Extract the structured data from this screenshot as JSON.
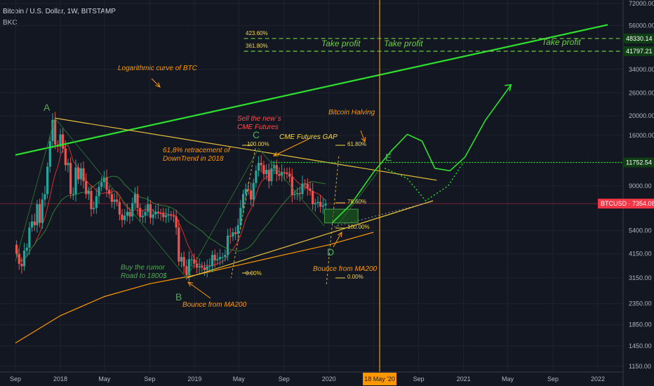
{
  "header": {
    "title": "Bitcoin / U.S. Dollar, 1W, BITSTAMP",
    "indicator": "BKC"
  },
  "colors": {
    "background": "#131722",
    "candle_up": "#26a69a",
    "candle_down": "#ef5350",
    "trend_green": "#2ee02e",
    "annotation_orange": "#ff9800",
    "annotation_yellow": "#f5d742",
    "annotation_red": "#ff4a4a",
    "price_badge": "#f23645",
    "target_badge": "#2a7d2e"
  },
  "chart_data": {
    "type": "candlestick",
    "symbol": "BTCUSD",
    "interval": "1W",
    "scale": "log",
    "ylim": [
      1150,
      80000
    ],
    "x_ticks": [
      "Sep",
      "2018",
      "May",
      "Sep",
      "2019",
      "May",
      "Sep",
      "2020",
      "May",
      "Sep",
      "2021",
      "May",
      "Sep",
      "2022"
    ],
    "x_tick_dates": [
      "2017-09-01",
      "2018-01-01",
      "2018-05-01",
      "2018-09-01",
      "2019-01-01",
      "2019-05-01",
      "2019-09-01",
      "2020-01-01",
      "2020-05-01",
      "2020-09-01",
      "2021-01-01",
      "2021-05-01",
      "2021-09-01",
      "2022-01-01"
    ],
    "y_ticks": [
      72000,
      56000,
      34000,
      26000,
      20000,
      16000,
      9000,
      5400,
      4150,
      3150,
      2350,
      1850,
      1450,
      1150
    ],
    "y_tick_labels": [
      "72000.00",
      "56000.00",
      "34000.00",
      "26000.00",
      "20000.00",
      "16000.00",
      "9000.00",
      "5400.00",
      "4150.00",
      "3150.00",
      "2350.00",
      "1850.00",
      "1450.00",
      "1150.00"
    ],
    "last_price": {
      "label": "BTCUSD",
      "value": "7354.08"
    },
    "price_levels": [
      {
        "value": "48330.14"
      },
      {
        "value": "41797.21"
      },
      {
        "value": "11752.54"
      }
    ],
    "vertical_marker": {
      "label": "18 May '20"
    },
    "fib_labels": [
      "423.60%",
      "361.80%",
      "100.00%",
      "0.00%",
      "61.80%",
      "78.60%",
      "100.00%",
      "0.00%"
    ],
    "points": [
      "A",
      "B",
      "C",
      "D",
      "E"
    ],
    "annotations": {
      "log_curve": "Logarithmic curve of BTC",
      "take_profit_1": "Take profit",
      "take_profit_2": "Take profit",
      "take_profit_3": "Take profit",
      "sell_futures_1": "Sell the new´s",
      "sell_futures_2": "CME Futures",
      "cme_gap": "CME Futures GAP",
      "halving": "Bitcoin Halving",
      "retrace_1": "61,8% retracement of",
      "retrace_2": "DownTrend in 2018",
      "buy_rumor_1": "Buy the rumor",
      "buy_rumor_2": "Road to 1800$",
      "bounce_ma200_b": "Bounce from MA200",
      "bounce_ma200_d": "Bounce from MA200"
    },
    "weekly_close": [
      [
        "2017-09-04",
        4150
      ],
      [
        "2017-09-11",
        3700
      ],
      [
        "2017-09-18",
        3600
      ],
      [
        "2017-09-25",
        4300
      ],
      [
        "2017-10-02",
        4450
      ],
      [
        "2017-10-09",
        5600
      ],
      [
        "2017-10-16",
        6000
      ],
      [
        "2017-10-23",
        5750
      ],
      [
        "2017-10-30",
        7300
      ],
      [
        "2017-11-06",
        5900
      ],
      [
        "2017-11-13",
        7700
      ],
      [
        "2017-11-20",
        8200
      ],
      [
        "2017-11-27",
        11200
      ],
      [
        "2017-12-04",
        15000
      ],
      [
        "2017-12-11",
        19100
      ],
      [
        "2017-12-18",
        14400
      ],
      [
        "2017-12-25",
        14100
      ],
      [
        "2018-01-01",
        16200
      ],
      [
        "2018-01-08",
        13800
      ],
      [
        "2018-01-15",
        11400
      ],
      [
        "2018-01-22",
        11700
      ],
      [
        "2018-01-29",
        8200
      ],
      [
        "2018-02-05",
        8200
      ],
      [
        "2018-02-12",
        11100
      ],
      [
        "2018-02-19",
        9700
      ],
      [
        "2018-02-26",
        11000
      ],
      [
        "2018-03-05",
        9500
      ],
      [
        "2018-03-12",
        8200
      ],
      [
        "2018-03-19",
        8500
      ],
      [
        "2018-03-26",
        6900
      ],
      [
        "2018-04-02",
        7000
      ],
      [
        "2018-04-09",
        8000
      ],
      [
        "2018-04-16",
        8900
      ],
      [
        "2018-04-23",
        9400
      ],
      [
        "2018-04-30",
        9900
      ],
      [
        "2018-05-07",
        8600
      ],
      [
        "2018-05-14",
        8200
      ],
      [
        "2018-05-21",
        7500
      ],
      [
        "2018-05-28",
        7700
      ],
      [
        "2018-06-04",
        7500
      ],
      [
        "2018-06-11",
        6500
      ],
      [
        "2018-06-18",
        6100
      ],
      [
        "2018-06-25",
        6400
      ],
      [
        "2018-07-02",
        6700
      ],
      [
        "2018-07-09",
        6350
      ],
      [
        "2018-07-16",
        7400
      ],
      [
        "2018-07-23",
        8200
      ],
      [
        "2018-07-30",
        7000
      ],
      [
        "2018-08-06",
        6300
      ],
      [
        "2018-08-13",
        6400
      ],
      [
        "2018-08-20",
        6700
      ],
      [
        "2018-08-27",
        7300
      ],
      [
        "2018-09-03",
        6250
      ],
      [
        "2018-09-10",
        6500
      ],
      [
        "2018-09-17",
        6700
      ],
      [
        "2018-09-24",
        6600
      ],
      [
        "2018-10-01",
        6580
      ],
      [
        "2018-10-08",
        6300
      ],
      [
        "2018-10-15",
        6450
      ],
      [
        "2018-10-22",
        6450
      ],
      [
        "2018-10-29",
        6400
      ],
      [
        "2018-11-05",
        6350
      ],
      [
        "2018-11-12",
        5600
      ],
      [
        "2018-11-19",
        3800
      ],
      [
        "2018-11-26",
        4000
      ],
      [
        "2018-12-03",
        3600
      ],
      [
        "2018-12-10",
        3250
      ],
      [
        "2018-12-17",
        3900
      ],
      [
        "2018-12-24",
        3900
      ],
      [
        "2018-12-31",
        3700
      ],
      [
        "2019-01-07",
        3550
      ],
      [
        "2019-01-14",
        3600
      ],
      [
        "2019-01-21",
        3550
      ],
      [
        "2019-01-28",
        3450
      ],
      [
        "2019-02-04",
        3600
      ],
      [
        "2019-02-11",
        3600
      ],
      [
        "2019-02-18",
        4100
      ],
      [
        "2019-02-25",
        3850
      ],
      [
        "2019-03-04",
        3900
      ],
      [
        "2019-03-11",
        4000
      ],
      [
        "2019-03-18",
        4000
      ],
      [
        "2019-03-25",
        4100
      ],
      [
        "2019-04-01",
        5100
      ],
      [
        "2019-04-08",
        5050
      ],
      [
        "2019-04-15",
        5300
      ],
      [
        "2019-04-22",
        5200
      ],
      [
        "2019-04-29",
        5750
      ],
      [
        "2019-05-06",
        7000
      ],
      [
        "2019-05-13",
        8200
      ],
      [
        "2019-05-20",
        8700
      ],
      [
        "2019-05-27",
        8550
      ],
      [
        "2019-06-03",
        7700
      ],
      [
        "2019-06-10",
        9300
      ],
      [
        "2019-06-17",
        10700
      ],
      [
        "2019-06-24",
        11700
      ],
      [
        "2019-07-01",
        11400
      ],
      [
        "2019-07-08",
        10300
      ],
      [
        "2019-07-15",
        10800
      ],
      [
        "2019-07-22",
        9500
      ],
      [
        "2019-07-29",
        11000
      ],
      [
        "2019-08-05",
        11400
      ],
      [
        "2019-08-12",
        10300
      ],
      [
        "2019-08-19",
        10100
      ],
      [
        "2019-08-26",
        10500
      ],
      [
        "2019-09-02",
        10400
      ],
      [
        "2019-09-09",
        10300
      ],
      [
        "2019-09-16",
        10000
      ],
      [
        "2019-09-23",
        8100
      ],
      [
        "2019-09-30",
        8200
      ],
      [
        "2019-10-07",
        8300
      ],
      [
        "2019-10-14",
        8200
      ],
      [
        "2019-10-21",
        9250
      ],
      [
        "2019-10-28",
        9200
      ],
      [
        "2019-11-04",
        8750
      ],
      [
        "2019-11-11",
        8500
      ],
      [
        "2019-11-18",
        7300
      ],
      [
        "2019-11-25",
        7400
      ],
      [
        "2019-12-02",
        7500
      ],
      [
        "2019-12-09",
        7100
      ],
      [
        "2019-12-16",
        7200
      ],
      [
        "2019-12-23",
        7354.08
      ]
    ]
  }
}
